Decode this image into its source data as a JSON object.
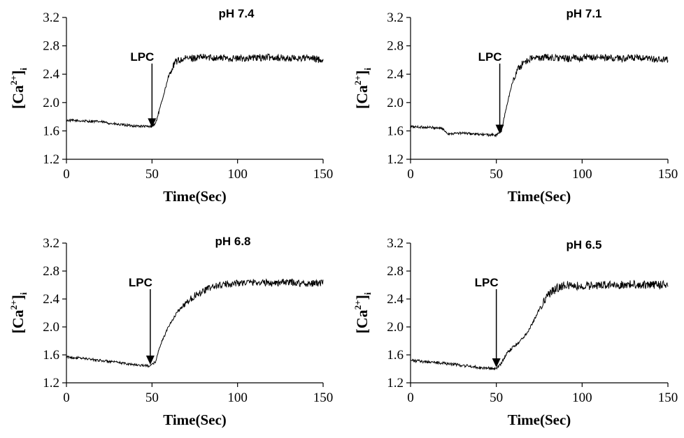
{
  "chart_data": [
    {
      "type": "line",
      "title": "pH 7.4",
      "xlabel": "Time(Sec)",
      "ylabel": {
        "pre": "[Ca",
        "sup": "2+",
        "post": "]",
        "sub": "i"
      },
      "xlim": [
        0,
        150
      ],
      "ylim": [
        1.2,
        3.2
      ],
      "xticks": [
        "0",
        "50",
        "100",
        "150"
      ],
      "yticks": [
        "1.2",
        "1.6",
        "2.0",
        "2.4",
        "2.8",
        "3.2"
      ],
      "annotation": {
        "label": "LPC",
        "x": 50,
        "y": 1.64
      },
      "series": [
        {
          "color": "#000000",
          "x": [
            0,
            10,
            20,
            30,
            40,
            49,
            52,
            55,
            58,
            61,
            64,
            70,
            80,
            90,
            100,
            110,
            120,
            130,
            140,
            150
          ],
          "y": [
            1.75,
            1.74,
            1.73,
            1.69,
            1.67,
            1.66,
            1.7,
            1.95,
            2.22,
            2.45,
            2.58,
            2.62,
            2.64,
            2.63,
            2.62,
            2.63,
            2.64,
            2.62,
            2.63,
            2.6
          ],
          "noise": 0.05
        }
      ]
    },
    {
      "type": "line",
      "title": "pH 7.1",
      "xlabel": "Time(Sec)",
      "ylabel": {
        "pre": "[Ca",
        "sup": "2+",
        "post": "]",
        "sub": "i"
      },
      "xlim": [
        0,
        150
      ],
      "ylim": [
        1.2,
        3.2
      ],
      "xticks": [
        "0",
        "50",
        "100",
        "150"
      ],
      "yticks": [
        "1.2",
        "1.6",
        "2.0",
        "2.4",
        "2.8",
        "3.2"
      ],
      "annotation": {
        "label": "LPC",
        "x": 52,
        "y": 1.55
      },
      "series": [
        {
          "color": "#000000",
          "x": [
            0,
            10,
            18,
            22,
            30,
            40,
            50,
            53,
            56,
            59,
            62,
            66,
            70,
            80,
            90,
            100,
            110,
            120,
            130,
            140,
            150
          ],
          "y": [
            1.66,
            1.65,
            1.64,
            1.56,
            1.57,
            1.55,
            1.54,
            1.6,
            1.95,
            2.25,
            2.45,
            2.57,
            2.62,
            2.64,
            2.62,
            2.63,
            2.64,
            2.62,
            2.63,
            2.61,
            2.6
          ],
          "noise": 0.05
        }
      ]
    },
    {
      "type": "line",
      "title": "pH 6.8",
      "xlabel": "Time(Sec)",
      "ylabel": {
        "pre": "[Ca",
        "sup": "2+",
        "post": "]",
        "sub": "i"
      },
      "xlim": [
        0,
        150
      ],
      "ylim": [
        1.2,
        3.2
      ],
      "xticks": [
        "0",
        "50",
        "100",
        "150"
      ],
      "yticks": [
        "1.2",
        "1.6",
        "2.0",
        "2.4",
        "2.8",
        "3.2"
      ],
      "annotation": {
        "label": "LPC",
        "x": 49,
        "y": 1.45
      },
      "series": [
        {
          "color": "#000000",
          "x": [
            0,
            10,
            20,
            30,
            40,
            49,
            52,
            55,
            60,
            65,
            70,
            75,
            80,
            85,
            90,
            100,
            110,
            120,
            130,
            140,
            150
          ],
          "y": [
            1.57,
            1.55,
            1.52,
            1.49,
            1.46,
            1.44,
            1.5,
            1.75,
            2.02,
            2.22,
            2.35,
            2.45,
            2.52,
            2.57,
            2.6,
            2.63,
            2.64,
            2.63,
            2.64,
            2.62,
            2.63
          ],
          "noise": 0.05
        }
      ]
    },
    {
      "type": "line",
      "title": "pH 6.5",
      "xlabel": "Time(Sec)",
      "ylabel": {
        "pre": "[Ca",
        "sup": "2+",
        "post": "]",
        "sub": "i"
      },
      "xlim": [
        0,
        150
      ],
      "ylim": [
        1.2,
        3.2
      ],
      "xticks": [
        "0",
        "50",
        "100",
        "150"
      ],
      "yticks": [
        "1.2",
        "1.6",
        "2.0",
        "2.4",
        "2.8",
        "3.2"
      ],
      "annotation": {
        "label": "LPC",
        "x": 50,
        "y": 1.41
      },
      "series": [
        {
          "color": "#000000",
          "x": [
            0,
            10,
            20,
            30,
            40,
            50,
            53,
            56,
            60,
            64,
            68,
            72,
            76,
            80,
            85,
            90,
            100,
            110,
            120,
            130,
            140,
            150
          ],
          "y": [
            1.52,
            1.5,
            1.48,
            1.45,
            1.42,
            1.4,
            1.48,
            1.62,
            1.72,
            1.8,
            1.92,
            2.1,
            2.3,
            2.45,
            2.55,
            2.6,
            2.58,
            2.6,
            2.6,
            2.61,
            2.6,
            2.61
          ],
          "noise": 0.06
        }
      ]
    }
  ]
}
